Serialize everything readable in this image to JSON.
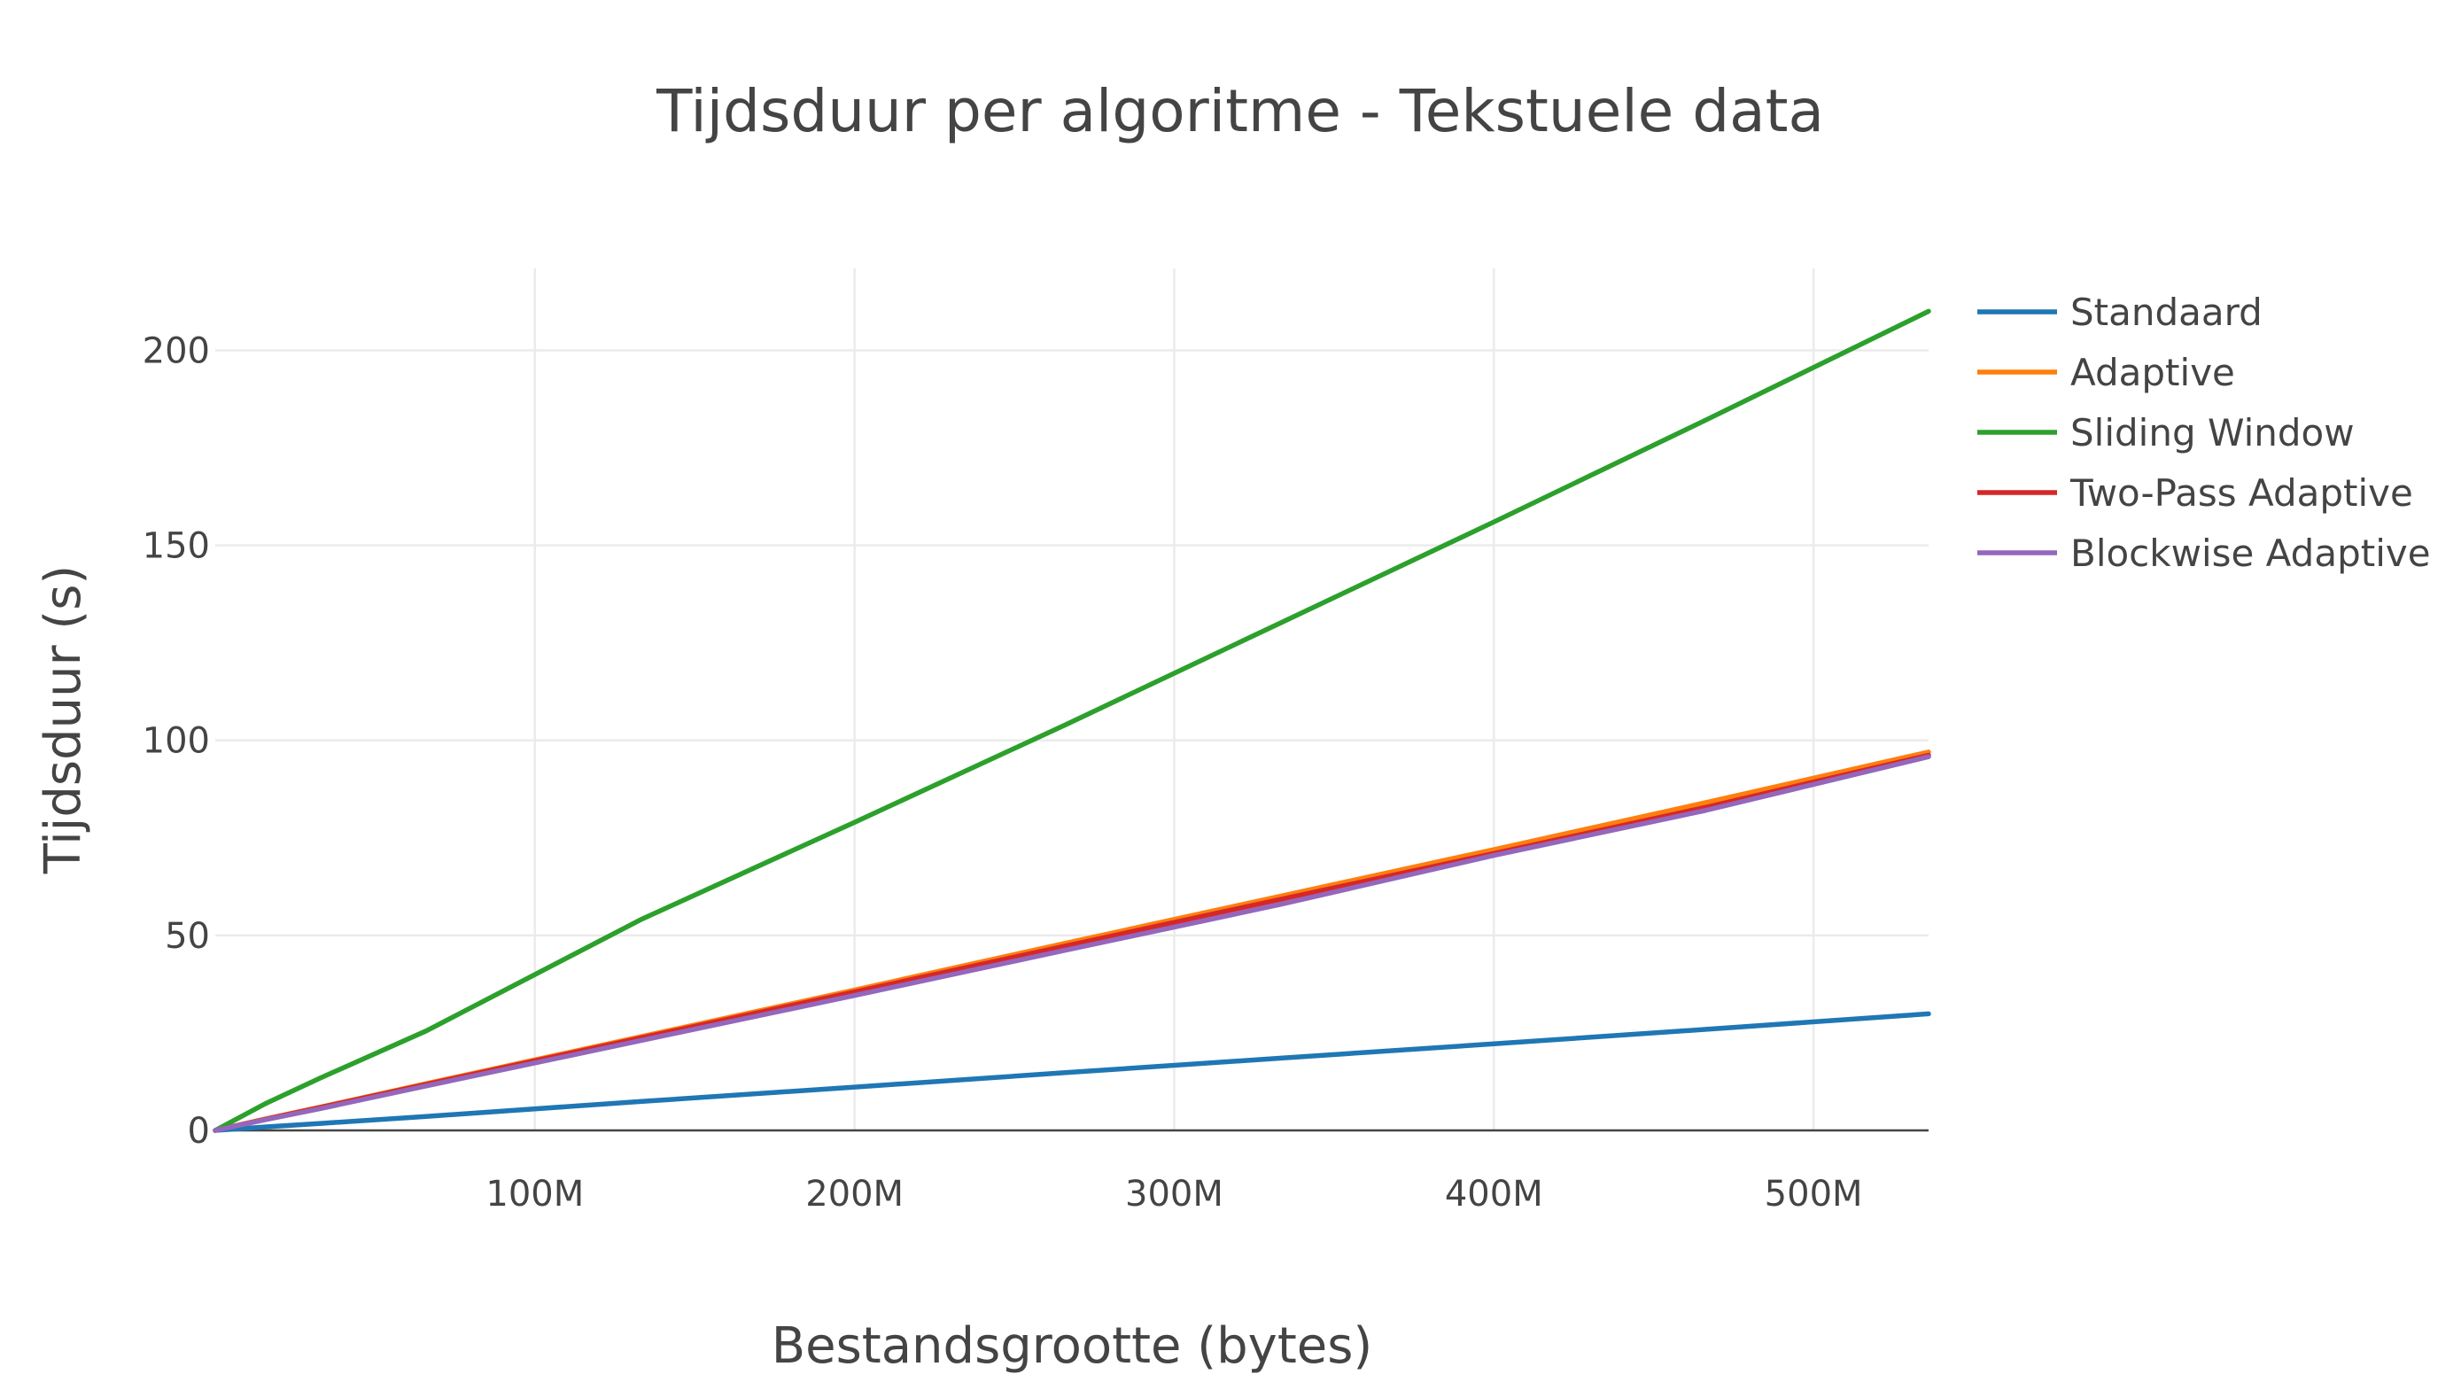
{
  "chart_data": {
    "type": "line",
    "title": "Tijdsduur per algoritme - Tekstuele data",
    "xlabel": "Bestandsgrootte (bytes)",
    "ylabel": "Tijdsduur (s)",
    "xlim": [
      0,
      536000000
    ],
    "ylim": [
      0,
      221
    ],
    "x_ticks": [
      {
        "value": 100000000,
        "label": "100M"
      },
      {
        "value": 200000000,
        "label": "200M"
      },
      {
        "value": 300000000,
        "label": "300M"
      },
      {
        "value": 400000000,
        "label": "400M"
      },
      {
        "value": 500000000,
        "label": "500M"
      }
    ],
    "y_ticks": [
      {
        "value": 0,
        "label": "0"
      },
      {
        "value": 50,
        "label": "50"
      },
      {
        "value": 100,
        "label": "100"
      },
      {
        "value": 150,
        "label": "150"
      },
      {
        "value": 200,
        "label": "200"
      }
    ],
    "grid": true,
    "legend_position": "top-right",
    "x": [
      0,
      16000000,
      33000000,
      66000000,
      133000000,
      200000000,
      266000000,
      333000000,
      400000000,
      466000000,
      536000000
    ],
    "series": [
      {
        "name": "Standaard",
        "color": "#1f77b4",
        "values": [
          0,
          0.9,
          1.8,
          3.6,
          7.4,
          11.1,
          14.8,
          18.5,
          22.2,
          25.9,
          29.9
        ]
      },
      {
        "name": "Adaptive",
        "color": "#ff7f0e",
        "values": [
          0,
          3.0,
          6.0,
          12.0,
          24.0,
          36.0,
          48.0,
          60.0,
          72.0,
          84.0,
          97.0
        ]
      },
      {
        "name": "Sliding Window",
        "color": "#2ca02c",
        "values": [
          0,
          7.0,
          13.5,
          25.5,
          54.0,
          79.0,
          104.0,
          130.0,
          156.0,
          182.0,
          210.0
        ]
      },
      {
        "name": "Two-Pass Adaptive",
        "color": "#d62728",
        "values": [
          0,
          2.9,
          5.9,
          11.8,
          23.7,
          35.5,
          47.3,
          59.2,
          71.0,
          82.8,
          96.2
        ]
      },
      {
        "name": "Blockwise Adaptive",
        "color": "#9467bd",
        "values": [
          0,
          2.8,
          5.6,
          11.4,
          23.0,
          34.6,
          46.2,
          57.9,
          70.5,
          82.0,
          95.8
        ]
      }
    ]
  }
}
